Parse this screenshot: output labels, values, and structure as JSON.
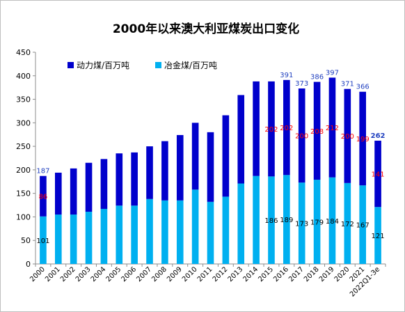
{
  "chart_data": {
    "type": "bar",
    "stacked": true,
    "title": "2000年以来澳大利亚煤炭出口变化",
    "xlabel": "",
    "ylabel": "",
    "ylim": [
      0,
      450
    ],
    "yticks": [
      0,
      50,
      100,
      150,
      200,
      250,
      300,
      350,
      400,
      450
    ],
    "grid": false,
    "legend_position": "top-left",
    "categories": [
      "2000",
      "2001",
      "2002",
      "2003",
      "2004",
      "2005",
      "2006",
      "2007",
      "2008",
      "2009",
      "2010",
      "2011",
      "2012",
      "2013",
      "2014",
      "2015",
      "2016",
      "2017",
      "2018",
      "2019",
      "2020",
      "2021",
      "2022Q1-3e"
    ],
    "series": [
      {
        "name": "冶金煤/百万吨",
        "color": "#00b0f0",
        "values": [
          101,
          105,
          105,
          111,
          117,
          124,
          124,
          138,
          135,
          135,
          158,
          132,
          143,
          171,
          187,
          186,
          189,
          173,
          179,
          184,
          172,
          167,
          121
        ]
      },
      {
        "name": "动力煤/百万吨",
        "color": "#0000cc",
        "values": [
          86,
          89,
          98,
          104,
          106,
          111,
          113,
          112,
          126,
          139,
          142,
          148,
          173,
          188,
          201,
          202,
          202,
          200,
          208,
          212,
          200,
          199,
          141
        ]
      }
    ],
    "totals": [
      187,
      194,
      203,
      215,
      223,
      235,
      237,
      250,
      261,
      274,
      300,
      280,
      316,
      359,
      388,
      388,
      391,
      373,
      386,
      397,
      371,
      366,
      262
    ],
    "data_labels": {
      "metallurgical": [
        {
          "index": 0,
          "text": "101"
        },
        {
          "index": 15,
          "text": "186"
        },
        {
          "index": 16,
          "text": "189"
        },
        {
          "index": 17,
          "text": "173"
        },
        {
          "index": 18,
          "text": "179"
        },
        {
          "index": 19,
          "text": "184"
        },
        {
          "index": 20,
          "text": "172"
        },
        {
          "index": 21,
          "text": "167"
        },
        {
          "index": 22,
          "text": "121"
        }
      ],
      "thermal": [
        {
          "index": 0,
          "text": "86"
        },
        {
          "index": 15,
          "text": "202"
        },
        {
          "index": 16,
          "text": "202"
        },
        {
          "index": 17,
          "text": "200"
        },
        {
          "index": 18,
          "text": "208"
        },
        {
          "index": 19,
          "text": "212"
        },
        {
          "index": 20,
          "text": "200"
        },
        {
          "index": 21,
          "text": "199"
        },
        {
          "index": 22,
          "text": "141"
        }
      ],
      "total": [
        {
          "index": 0,
          "text": "187"
        },
        {
          "index": 16,
          "text": "391"
        },
        {
          "index": 17,
          "text": "373"
        },
        {
          "index": 18,
          "text": "386"
        },
        {
          "index": 19,
          "text": "397"
        },
        {
          "index": 20,
          "text": "371"
        },
        {
          "index": 21,
          "text": "366"
        },
        {
          "index": 22,
          "text": "262"
        }
      ]
    },
    "label_colors": {
      "metallurgical": "#000000",
      "thermal": "#ff0000",
      "total": "#1f3fbf"
    }
  }
}
